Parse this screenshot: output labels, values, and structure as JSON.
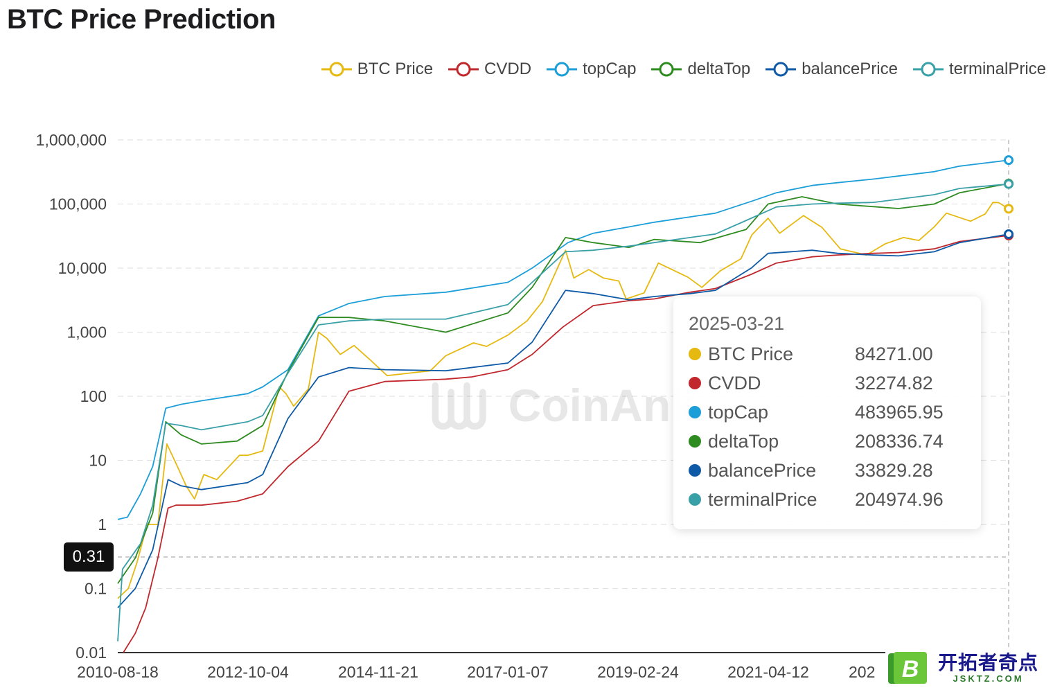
{
  "page": {
    "title": "BTC Price Prediction"
  },
  "legend": [
    {
      "name": "BTC Price",
      "color": "#e6b911"
    },
    {
      "name": "CVDD",
      "color": "#c1282d"
    },
    {
      "name": "topCap",
      "color": "#1c9ed8"
    },
    {
      "name": "deltaTop",
      "color": "#2e8b20"
    },
    {
      "name": "balancePrice",
      "color": "#0e5aa7"
    },
    {
      "name": "terminalPrice",
      "color": "#3aa0a8"
    }
  ],
  "tooltip": {
    "date": "2025-03-21",
    "rows": [
      {
        "name": "BTC Price",
        "value": "84271.00",
        "color": "#e6b911"
      },
      {
        "name": "CVDD",
        "value": "32274.82",
        "color": "#c1282d"
      },
      {
        "name": "topCap",
        "value": "483965.95",
        "color": "#1c9ed8"
      },
      {
        "name": "deltaTop",
        "value": "208336.74",
        "color": "#2e8b20"
      },
      {
        "name": "balancePrice",
        "value": "33829.28",
        "color": "#0e5aa7"
      },
      {
        "name": "terminalPrice",
        "value": "204974.96",
        "color": "#3aa0a8"
      }
    ]
  },
  "crosshair": {
    "y_value": "0.31",
    "date": "2025-03-21"
  },
  "watermark": {
    "text": "CoinAnk"
  },
  "brand": {
    "cn": "开拓者奇点",
    "en": "JSKTZ.COM",
    "badge_letter": "B"
  },
  "chart_data": {
    "type": "line",
    "yscale": "log",
    "ylim": [
      0.01,
      1000000
    ],
    "xlim": [
      "2010-08-18",
      "2025-03-21"
    ],
    "y_ticks": [
      "1,000,000",
      "100,000",
      "10,000",
      "1,000",
      "100",
      "10",
      "1",
      "0.1",
      "0.01"
    ],
    "x_ticks": [
      "2010-08-18",
      "2012-10-04",
      "2014-11-21",
      "2017-01-07",
      "2019-02-24",
      "2021-04-12",
      "202"
    ],
    "grid": true,
    "legend_position": "top-right",
    "series": [
      {
        "name": "BTC Price",
        "color": "#e6b911",
        "points": [
          [
            "2010-08-18",
            0.07
          ],
          [
            "2010-10-20",
            0.1
          ],
          [
            "2010-12-10",
            0.25
          ],
          [
            "2011-02-10",
            1
          ],
          [
            "2011-04-15",
            1
          ],
          [
            "2011-06-08",
            18
          ],
          [
            "2011-08-01",
            9
          ],
          [
            "2011-10-01",
            4
          ],
          [
            "2011-11-20",
            2.5
          ],
          [
            "2012-01-15",
            6
          ],
          [
            "2012-04-01",
            5
          ],
          [
            "2012-08-15",
            12
          ],
          [
            "2012-10-04",
            12
          ],
          [
            "2013-01-01",
            14
          ],
          [
            "2013-04-10",
            140
          ],
          [
            "2013-05-20",
            110
          ],
          [
            "2013-07-05",
            70
          ],
          [
            "2013-10-01",
            130
          ],
          [
            "2013-12-01",
            1000
          ],
          [
            "2014-01-20",
            800
          ],
          [
            "2014-04-10",
            450
          ],
          [
            "2014-07-01",
            620
          ],
          [
            "2014-10-01",
            380
          ],
          [
            "2015-01-15",
            210
          ],
          [
            "2015-06-01",
            230
          ],
          [
            "2015-10-01",
            250
          ],
          [
            "2016-01-01",
            430
          ],
          [
            "2016-06-15",
            680
          ],
          [
            "2016-09-01",
            600
          ],
          [
            "2017-01-07",
            900
          ],
          [
            "2017-05-01",
            1500
          ],
          [
            "2017-08-01",
            3000
          ],
          [
            "2017-12-17",
            19000
          ],
          [
            "2018-02-05",
            7000
          ],
          [
            "2018-05-05",
            9500
          ],
          [
            "2018-08-01",
            7000
          ],
          [
            "2018-11-01",
            6300
          ],
          [
            "2018-12-15",
            3300
          ],
          [
            "2019-04-01",
            4100
          ],
          [
            "2019-06-26",
            12000
          ],
          [
            "2019-12-20",
            7200
          ],
          [
            "2020-03-12",
            5000
          ],
          [
            "2020-07-01",
            9100
          ],
          [
            "2020-11-01",
            14000
          ],
          [
            "2021-01-05",
            33000
          ],
          [
            "2021-04-12",
            60000
          ],
          [
            "2021-06-20",
            35000
          ],
          [
            "2021-11-10",
            66000
          ],
          [
            "2022-03-01",
            43000
          ],
          [
            "2022-06-18",
            20000
          ],
          [
            "2022-11-21",
            16000
          ],
          [
            "2023-03-15",
            24000
          ],
          [
            "2023-07-01",
            30000
          ],
          [
            "2023-10-01",
            27000
          ],
          [
            "2024-01-01",
            44000
          ],
          [
            "2024-03-14",
            72000
          ],
          [
            "2024-08-05",
            54000
          ],
          [
            "2024-11-01",
            70000
          ],
          [
            "2024-12-17",
            106000
          ],
          [
            "2025-01-20",
            105000
          ],
          [
            "2025-03-21",
            84271
          ]
        ]
      },
      {
        "name": "CVDD",
        "color": "#c1282d",
        "points": [
          [
            "2010-09-20",
            0.01
          ],
          [
            "2010-12-01",
            0.02
          ],
          [
            "2011-02-01",
            0.05
          ],
          [
            "2011-04-15",
            0.3
          ],
          [
            "2011-06-15",
            1.8
          ],
          [
            "2011-08-01",
            2
          ],
          [
            "2012-01-01",
            2
          ],
          [
            "2012-08-01",
            2.3
          ],
          [
            "2013-01-01",
            3
          ],
          [
            "2013-06-01",
            8
          ],
          [
            "2013-12-01",
            20
          ],
          [
            "2014-06-01",
            120
          ],
          [
            "2015-01-01",
            170
          ],
          [
            "2016-01-01",
            185
          ],
          [
            "2016-06-01",
            200
          ],
          [
            "2017-01-07",
            260
          ],
          [
            "2017-06-01",
            450
          ],
          [
            "2017-12-01",
            1200
          ],
          [
            "2018-06-01",
            2600
          ],
          [
            "2019-01-01",
            3100
          ],
          [
            "2019-06-01",
            3300
          ],
          [
            "2020-01-01",
            4200
          ],
          [
            "2020-06-01",
            4800
          ],
          [
            "2021-01-01",
            8000
          ],
          [
            "2021-06-01",
            12000
          ],
          [
            "2022-01-01",
            15000
          ],
          [
            "2022-06-01",
            16000
          ],
          [
            "2023-01-01",
            17000
          ],
          [
            "2023-06-01",
            17500
          ],
          [
            "2024-01-01",
            20000
          ],
          [
            "2024-06-01",
            26000
          ],
          [
            "2025-03-21",
            32274.82
          ]
        ]
      },
      {
        "name": "topCap",
        "color": "#1c9ed8",
        "points": [
          [
            "2010-08-18",
            1.2
          ],
          [
            "2010-10-15",
            1.3
          ],
          [
            "2011-01-01",
            3
          ],
          [
            "2011-03-15",
            8
          ],
          [
            "2011-06-01",
            65
          ],
          [
            "2011-09-01",
            75
          ],
          [
            "2012-01-01",
            85
          ],
          [
            "2012-10-04",
            110
          ],
          [
            "2013-01-01",
            140
          ],
          [
            "2013-06-01",
            260
          ],
          [
            "2013-12-01",
            1800
          ],
          [
            "2014-06-01",
            2800
          ],
          [
            "2015-01-01",
            3600
          ],
          [
            "2016-01-01",
            4200
          ],
          [
            "2017-01-07",
            6000
          ],
          [
            "2017-06-01",
            10000
          ],
          [
            "2018-01-01",
            25000
          ],
          [
            "2018-06-01",
            35000
          ],
          [
            "2019-01-01",
            44000
          ],
          [
            "2019-06-01",
            52000
          ],
          [
            "2020-01-01",
            63000
          ],
          [
            "2020-06-01",
            72000
          ],
          [
            "2021-01-01",
            110000
          ],
          [
            "2021-06-01",
            150000
          ],
          [
            "2022-01-01",
            195000
          ],
          [
            "2022-06-01",
            215000
          ],
          [
            "2023-01-01",
            245000
          ],
          [
            "2024-01-01",
            320000
          ],
          [
            "2024-06-01",
            390000
          ],
          [
            "2025-03-21",
            483965.95
          ]
        ]
      },
      {
        "name": "deltaTop",
        "color": "#2e8b20",
        "points": [
          [
            "2010-08-18",
            0.12
          ],
          [
            "2010-12-01",
            0.3
          ],
          [
            "2011-03-15",
            1.5
          ],
          [
            "2011-06-01",
            40
          ],
          [
            "2011-09-01",
            25
          ],
          [
            "2012-01-01",
            18
          ],
          [
            "2012-08-01",
            20
          ],
          [
            "2013-01-01",
            35
          ],
          [
            "2013-06-01",
            240
          ],
          [
            "2013-12-01",
            1700
          ],
          [
            "2014-06-01",
            1700
          ],
          [
            "2015-01-01",
            1500
          ],
          [
            "2016-01-01",
            1000
          ],
          [
            "2017-01-07",
            2000
          ],
          [
            "2017-06-01",
            5000
          ],
          [
            "2017-12-17",
            30000
          ],
          [
            "2018-06-01",
            25000
          ],
          [
            "2019-01-01",
            21000
          ],
          [
            "2019-06-01",
            28000
          ],
          [
            "2020-03-01",
            25000
          ],
          [
            "2020-12-01",
            40000
          ],
          [
            "2021-04-12",
            100000
          ],
          [
            "2021-11-01",
            130000
          ],
          [
            "2022-06-01",
            100000
          ],
          [
            "2023-06-01",
            85000
          ],
          [
            "2024-01-01",
            100000
          ],
          [
            "2024-06-01",
            150000
          ],
          [
            "2025-03-21",
            208336.74
          ]
        ]
      },
      {
        "name": "balancePrice",
        "color": "#0e5aa7",
        "points": [
          [
            "2010-08-18",
            0.05
          ],
          [
            "2010-12-01",
            0.1
          ],
          [
            "2011-03-15",
            0.4
          ],
          [
            "2011-06-15",
            5
          ],
          [
            "2011-09-01",
            4
          ],
          [
            "2012-01-01",
            3.5
          ],
          [
            "2012-10-04",
            4.5
          ],
          [
            "2013-01-01",
            6
          ],
          [
            "2013-06-01",
            45
          ],
          [
            "2013-12-01",
            200
          ],
          [
            "2014-06-01",
            280
          ],
          [
            "2015-01-01",
            260
          ],
          [
            "2016-01-01",
            250
          ],
          [
            "2017-01-07",
            330
          ],
          [
            "2017-06-01",
            700
          ],
          [
            "2017-12-17",
            4500
          ],
          [
            "2018-06-01",
            4000
          ],
          [
            "2019-01-01",
            3200
          ],
          [
            "2019-06-01",
            3600
          ],
          [
            "2020-01-01",
            4000
          ],
          [
            "2020-06-01",
            4500
          ],
          [
            "2021-01-01",
            10000
          ],
          [
            "2021-04-12",
            17000
          ],
          [
            "2022-01-01",
            19000
          ],
          [
            "2022-06-01",
            17000
          ],
          [
            "2023-01-01",
            16000
          ],
          [
            "2023-06-01",
            15500
          ],
          [
            "2024-01-01",
            18000
          ],
          [
            "2024-06-01",
            25000
          ],
          [
            "2025-03-21",
            33829.28
          ]
        ]
      },
      {
        "name": "terminalPrice",
        "color": "#3aa0a8",
        "points": [
          [
            "2010-08-18",
            0.015
          ],
          [
            "2010-09-15",
            0.2
          ],
          [
            "2011-01-01",
            0.5
          ],
          [
            "2011-03-15",
            2
          ],
          [
            "2011-06-01",
            38
          ],
          [
            "2011-09-01",
            35
          ],
          [
            "2012-01-01",
            30
          ],
          [
            "2012-10-04",
            40
          ],
          [
            "2013-01-01",
            50
          ],
          [
            "2013-06-01",
            230
          ],
          [
            "2013-12-01",
            1300
          ],
          [
            "2014-06-01",
            1500
          ],
          [
            "2015-01-01",
            1600
          ],
          [
            "2016-01-01",
            1600
          ],
          [
            "2017-01-07",
            2700
          ],
          [
            "2017-06-01",
            6000
          ],
          [
            "2017-12-17",
            18000
          ],
          [
            "2018-06-01",
            19000
          ],
          [
            "2019-01-01",
            22000
          ],
          [
            "2019-06-01",
            25000
          ],
          [
            "2020-01-01",
            30000
          ],
          [
            "2020-06-01",
            34000
          ],
          [
            "2021-01-01",
            60000
          ],
          [
            "2021-06-01",
            90000
          ],
          [
            "2022-01-01",
            100000
          ],
          [
            "2022-06-01",
            103000
          ],
          [
            "2023-01-01",
            106000
          ],
          [
            "2024-01-01",
            140000
          ],
          [
            "2024-06-01",
            175000
          ],
          [
            "2025-03-21",
            204974.96
          ]
        ]
      }
    ]
  }
}
